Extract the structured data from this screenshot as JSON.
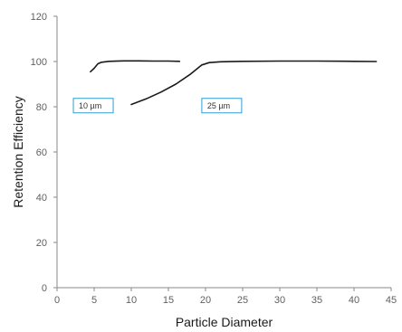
{
  "chart_data": {
    "type": "line",
    "title": "",
    "xlabel": "Particle Diameter",
    "ylabel": "Retention Efficiency",
    "xlim": [
      0,
      45
    ],
    "ylim": [
      0,
      120
    ],
    "xticks": [
      0,
      5,
      10,
      15,
      20,
      25,
      30,
      35,
      40,
      45
    ],
    "yticks": [
      0,
      20,
      40,
      60,
      80,
      100,
      120
    ],
    "grid": false,
    "series": [
      {
        "color": "#1a1a1a",
        "x": [
          4.5,
          5.0,
          5.5,
          6.0,
          7.0,
          9.0,
          11.0,
          13.0,
          15.0,
          16.5
        ],
        "y": [
          95.5,
          97.0,
          99.0,
          99.7,
          100.1,
          100.3,
          100.3,
          100.2,
          100.2,
          100.1
        ]
      },
      {
        "color": "#1a1a1a",
        "x": [
          10.0,
          12.0,
          14.0,
          16.0,
          18.0,
          19.5,
          20.5,
          22.0,
          25.0,
          30.0,
          35.0,
          40.0,
          43.0
        ],
        "y": [
          81.0,
          83.5,
          86.5,
          90.0,
          94.5,
          98.5,
          99.5,
          99.9,
          100.1,
          100.2,
          100.2,
          100.1,
          100.0
        ]
      }
    ],
    "annotations": [
      {
        "text": "10 µm",
        "x": 2.2,
        "y": 80.5,
        "border_color": "#2a9fd6"
      },
      {
        "text": "25 µm",
        "x": 19.5,
        "y": 80.5,
        "border_color": "#2a9fd6"
      }
    ]
  }
}
